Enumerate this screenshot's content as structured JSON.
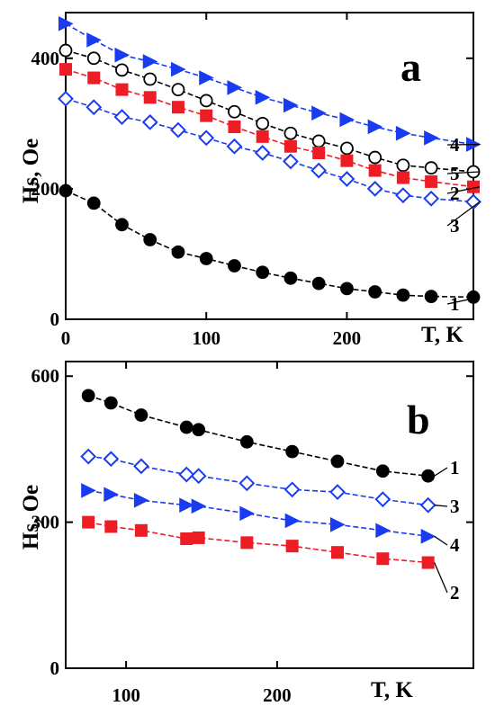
{
  "chart_data": [
    {
      "panel": "a",
      "type": "line",
      "xlabel": "T, K",
      "ylabel": "Hs, Oe",
      "xlim": [
        0,
        290
      ],
      "ylim": [
        0,
        470
      ],
      "xticks": [
        0,
        100,
        200
      ],
      "yticks": [
        0,
        200,
        400
      ],
      "xtick_labels": [
        "0",
        "100",
        "200"
      ],
      "ytick_labels": [
        "0",
        "200",
        "400"
      ],
      "grid": false,
      "series": [
        {
          "name": "4",
          "marker": "triangle-right",
          "color": "#1a3cf0",
          "fill": "#1a3cf0",
          "x": [
            0,
            20,
            40,
            60,
            80,
            100,
            120,
            140,
            160,
            180,
            200,
            220,
            240,
            260,
            290
          ],
          "y": [
            453,
            428,
            405,
            395,
            383,
            370,
            355,
            340,
            328,
            316,
            306,
            295,
            285,
            278,
            268
          ]
        },
        {
          "name": "5",
          "marker": "circle-open",
          "color": "#000000",
          "fill": "#ffffff",
          "x": [
            0,
            20,
            40,
            60,
            80,
            100,
            120,
            140,
            160,
            180,
            200,
            220,
            240,
            260,
            290
          ],
          "y": [
            412,
            400,
            382,
            368,
            352,
            335,
            318,
            300,
            285,
            273,
            262,
            248,
            236,
            232,
            226
          ]
        },
        {
          "name": "2",
          "marker": "square",
          "color": "#ee1c24",
          "fill": "#ee1c24",
          "x": [
            0,
            20,
            40,
            60,
            80,
            100,
            120,
            140,
            160,
            180,
            200,
            220,
            240,
            260,
            290
          ],
          "y": [
            383,
            370,
            352,
            340,
            325,
            312,
            295,
            280,
            265,
            255,
            243,
            228,
            217,
            211,
            203
          ]
        },
        {
          "name": "3",
          "marker": "diamond-open",
          "color": "#1a3cf0",
          "fill": "#ffffff",
          "x": [
            0,
            20,
            40,
            60,
            80,
            100,
            120,
            140,
            160,
            180,
            200,
            220,
            240,
            260,
            290
          ],
          "y": [
            338,
            325,
            310,
            302,
            290,
            278,
            265,
            255,
            242,
            228,
            215,
            200,
            190,
            185,
            180
          ]
        },
        {
          "name": "1",
          "marker": "circle",
          "color": "#000000",
          "fill": "#000000",
          "x": [
            0,
            20,
            40,
            60,
            80,
            100,
            120,
            140,
            160,
            180,
            200,
            220,
            240,
            260,
            290
          ],
          "y": [
            197,
            178,
            145,
            122,
            103,
            93,
            82,
            72,
            63,
            55,
            47,
            42,
            37,
            35,
            34
          ]
        }
      ],
      "series_label_order": [
        "4",
        "5",
        "2",
        "3",
        "1"
      ]
    },
    {
      "panel": "b",
      "type": "line",
      "xlabel": "T, K",
      "ylabel": "Hs, Oe",
      "xlim": [
        60,
        330
      ],
      "ylim": [
        0,
        630
      ],
      "xticks": [
        100,
        200
      ],
      "yticks": [
        0,
        300,
        600
      ],
      "xtick_labels": [
        "100",
        "200"
      ],
      "ytick_labels": [
        "0",
        "300",
        "600"
      ],
      "grid": false,
      "series": [
        {
          "name": "1",
          "marker": "circle",
          "color": "#000000",
          "fill": "#000000",
          "x": [
            75,
            90,
            110,
            140,
            148,
            180,
            210,
            240,
            270,
            300
          ],
          "y": [
            560,
            545,
            520,
            495,
            490,
            465,
            445,
            425,
            405,
            395
          ]
        },
        {
          "name": "3",
          "marker": "diamond-open",
          "color": "#1a3cf0",
          "fill": "#ffffff",
          "x": [
            75,
            90,
            110,
            140,
            148,
            180,
            210,
            240,
            270,
            300
          ],
          "y": [
            435,
            430,
            415,
            398,
            395,
            380,
            367,
            362,
            347,
            335
          ]
        },
        {
          "name": "4",
          "marker": "triangle-right",
          "color": "#1a3cf0",
          "fill": "#1a3cf0",
          "x": [
            75,
            90,
            110,
            140,
            148,
            180,
            210,
            240,
            270,
            300
          ],
          "y": [
            365,
            357,
            345,
            335,
            333,
            318,
            303,
            295,
            283,
            271
          ]
        },
        {
          "name": "2",
          "marker": "square",
          "color": "#ee1c24",
          "fill": "#ee1c24",
          "x": [
            75,
            90,
            110,
            140,
            148,
            180,
            210,
            240,
            270,
            300
          ],
          "y": [
            300,
            291,
            283,
            266,
            268,
            258,
            251,
            238,
            225,
            217
          ]
        }
      ],
      "series_label_order": [
        "1",
        "3",
        "4",
        "2"
      ]
    }
  ]
}
